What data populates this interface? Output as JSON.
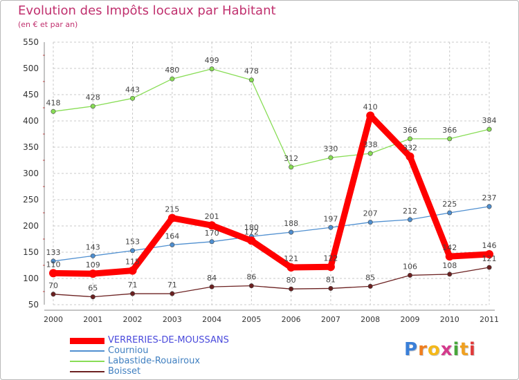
{
  "chart_data": {
    "type": "line",
    "title": "Evolution des Impôts locaux par Habitant",
    "subtitle": "(en € et par an)",
    "xlabel": "",
    "ylabel": "",
    "categories": [
      "2000",
      "2001",
      "2002",
      "2003",
      "2004",
      "2005",
      "2006",
      "2007",
      "2008",
      "2009",
      "2010",
      "2011"
    ],
    "ylim": [
      50,
      550
    ],
    "yticks": [
      50,
      100,
      150,
      200,
      250,
      300,
      350,
      400,
      450,
      500,
      550
    ],
    "grid": true,
    "legend_position": "bottom-left",
    "series": [
      {
        "name": "VERRERIES-DE-MOUSSANS",
        "color": "#ff0000",
        "values": [
          110,
          109,
          115,
          215,
          201,
          172,
          121,
          122,
          410,
          332,
          142,
          146
        ]
      },
      {
        "name": "Courniou",
        "color": "#4f8fd0",
        "values": [
          133,
          143,
          153,
          164,
          170,
          180,
          188,
          197,
          207,
          212,
          225,
          237
        ]
      },
      {
        "name": "Labastide-Rouairoux",
        "color": "#88dd55",
        "values": [
          418,
          428,
          443,
          480,
          499,
          478,
          312,
          330,
          338,
          366,
          366,
          384
        ]
      },
      {
        "name": "Boisset",
        "color": "#6b2020",
        "values": [
          70,
          65,
          71,
          71,
          84,
          86,
          80,
          81,
          85,
          106,
          108,
          121
        ]
      }
    ]
  },
  "logo": {
    "letters": [
      "P",
      "r",
      "o",
      "x",
      "i",
      "t",
      "i"
    ],
    "colors": [
      "#3a7fd8",
      "#f07e1e",
      "#f4b81a",
      "#d43a8c",
      "#47a63a",
      "#f0a020",
      "#e03a3a"
    ]
  }
}
